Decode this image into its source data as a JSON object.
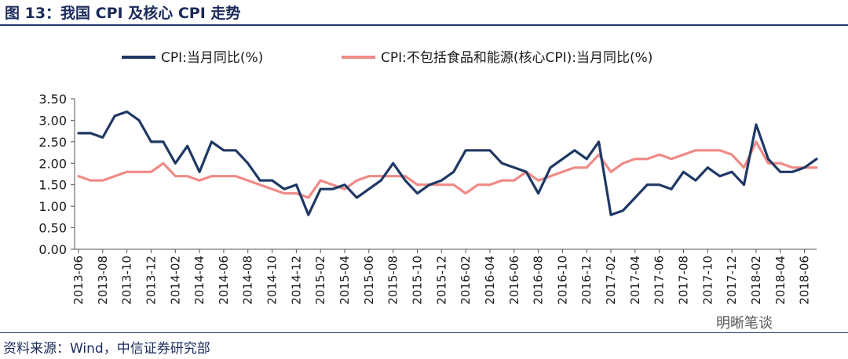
{
  "header": {
    "title": "图 13：我国 CPI 及核心 CPI 走势"
  },
  "footer": {
    "source": "资料来源：Wind，中信证券研究部",
    "watermark": "明晰笔谈"
  },
  "colors": {
    "cpi": "#1f3864",
    "core": "#f08a86",
    "axis": "#555555"
  },
  "chart_data": {
    "type": "line",
    "title": "",
    "xlabel": "",
    "ylabel": "",
    "ylim": [
      0,
      3.5
    ],
    "yticks": [
      "0.00",
      "0.50",
      "1.00",
      "1.50",
      "2.00",
      "2.50",
      "3.00",
      "3.50"
    ],
    "grid": false,
    "legend_position": "top",
    "x": [
      "2013-06",
      "2013-07",
      "2013-08",
      "2013-09",
      "2013-10",
      "2013-11",
      "2013-12",
      "2014-01",
      "2014-02",
      "2014-03",
      "2014-04",
      "2014-05",
      "2014-06",
      "2014-07",
      "2014-08",
      "2014-09",
      "2014-10",
      "2014-11",
      "2014-12",
      "2015-01",
      "2015-02",
      "2015-03",
      "2015-04",
      "2015-05",
      "2015-06",
      "2015-07",
      "2015-08",
      "2015-09",
      "2015-10",
      "2015-11",
      "2015-12",
      "2016-01",
      "2016-02",
      "2016-03",
      "2016-04",
      "2016-05",
      "2016-06",
      "2016-07",
      "2016-08",
      "2016-09",
      "2016-10",
      "2016-11",
      "2016-12",
      "2017-01",
      "2017-02",
      "2017-03",
      "2017-04",
      "2017-05",
      "2017-06",
      "2017-07",
      "2017-08",
      "2017-09",
      "2017-10",
      "2017-11",
      "2017-12",
      "2018-01",
      "2018-02",
      "2018-03",
      "2018-04",
      "2018-05",
      "2018-06",
      "2018-07"
    ],
    "xtick_labels": [
      "2013-06",
      "2013-08",
      "2013-10",
      "2013-12",
      "2014-02",
      "2014-04",
      "2014-06",
      "2014-08",
      "2014-10",
      "2014-12",
      "2015-02",
      "2015-04",
      "2015-06",
      "2015-08",
      "2015-10",
      "2015-12",
      "2016-02",
      "2016-04",
      "2016-06",
      "2016-08",
      "2016-10",
      "2016-12",
      "2017-02",
      "2017-04",
      "2017-06",
      "2017-08",
      "2017-10",
      "2017-12",
      "2018-02",
      "2018-04",
      "2018-06"
    ],
    "series": [
      {
        "name": "CPI:当月同比(%)",
        "values": [
          2.7,
          2.7,
          2.6,
          3.1,
          3.2,
          3.0,
          2.5,
          2.5,
          2.0,
          2.4,
          1.8,
          2.5,
          2.3,
          2.3,
          2.0,
          1.6,
          1.6,
          1.4,
          1.5,
          0.8,
          1.4,
          1.4,
          1.5,
          1.2,
          1.4,
          1.6,
          2.0,
          1.6,
          1.3,
          1.5,
          1.6,
          1.8,
          2.3,
          2.3,
          2.3,
          2.0,
          1.9,
          1.8,
          1.3,
          1.9,
          2.1,
          2.3,
          2.1,
          2.5,
          0.8,
          0.9,
          1.2,
          1.5,
          1.5,
          1.4,
          1.8,
          1.6,
          1.9,
          1.7,
          1.8,
          1.5,
          2.9,
          2.1,
          1.8,
          1.8,
          1.9,
          2.1
        ]
      },
      {
        "name": "CPI:不包括食品和能源(核心CPI):当月同比(%)",
        "values": [
          1.7,
          1.6,
          1.6,
          1.7,
          1.8,
          1.8,
          1.8,
          2.0,
          1.7,
          1.7,
          1.6,
          1.7,
          1.7,
          1.7,
          1.6,
          1.5,
          1.4,
          1.3,
          1.3,
          1.2,
          1.6,
          1.5,
          1.4,
          1.6,
          1.7,
          1.7,
          1.7,
          1.7,
          1.5,
          1.5,
          1.5,
          1.5,
          1.3,
          1.5,
          1.5,
          1.6,
          1.6,
          1.8,
          1.6,
          1.7,
          1.8,
          1.9,
          1.9,
          2.2,
          1.8,
          2.0,
          2.1,
          2.1,
          2.2,
          2.1,
          2.2,
          2.3,
          2.3,
          2.3,
          2.2,
          1.9,
          2.5,
          2.0,
          2.0,
          1.9,
          1.9,
          1.9
        ]
      }
    ]
  }
}
